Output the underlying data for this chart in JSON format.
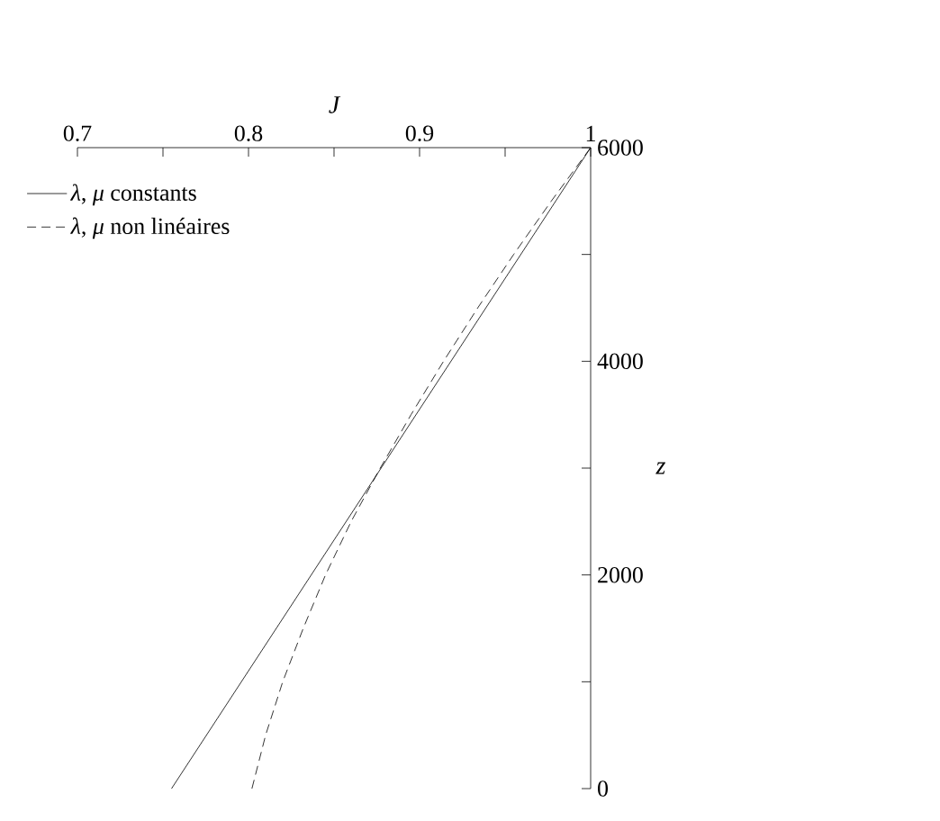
{
  "chart_data": {
    "type": "line",
    "xlabel": "J",
    "ylabel": "z",
    "xlim": [
      0.7,
      1
    ],
    "ylim": [
      0,
      6000
    ],
    "xticks": [
      0.7,
      {
        "value": 0.75,
        "label": null
      },
      0.8,
      {
        "value": 0.85,
        "label": null
      },
      0.9,
      {
        "value": 0.95,
        "label": null
      },
      1
    ],
    "yticks": [
      0,
      {
        "value": 1000,
        "label": null
      },
      2000,
      {
        "value": 3000,
        "label": null
      },
      4000,
      {
        "value": 5000,
        "label": null
      },
      6000
    ],
    "legend": "top left",
    "grid": false,
    "marker": "none",
    "series": [
      {
        "name": "*λ*, *μ* constants",
        "color": "#000000",
        "line_style": "solid",
        "x": [
          0.755,
          1.0
        ],
        "values": [
          0,
          6000
        ]
      },
      {
        "name": "*λ*, *μ* non linéaires",
        "color": "#000000",
        "line_style": "dashed",
        "x": [
          0.802,
          0.81,
          0.82,
          0.832,
          0.845,
          0.86,
          0.877,
          0.895,
          0.914,
          0.934,
          0.955,
          0.977,
          1.0
        ],
        "values": [
          0,
          500,
          1000,
          1500,
          2000,
          2500,
          3000,
          3500,
          4000,
          4500,
          5000,
          5500,
          6000
        ]
      }
    ]
  }
}
